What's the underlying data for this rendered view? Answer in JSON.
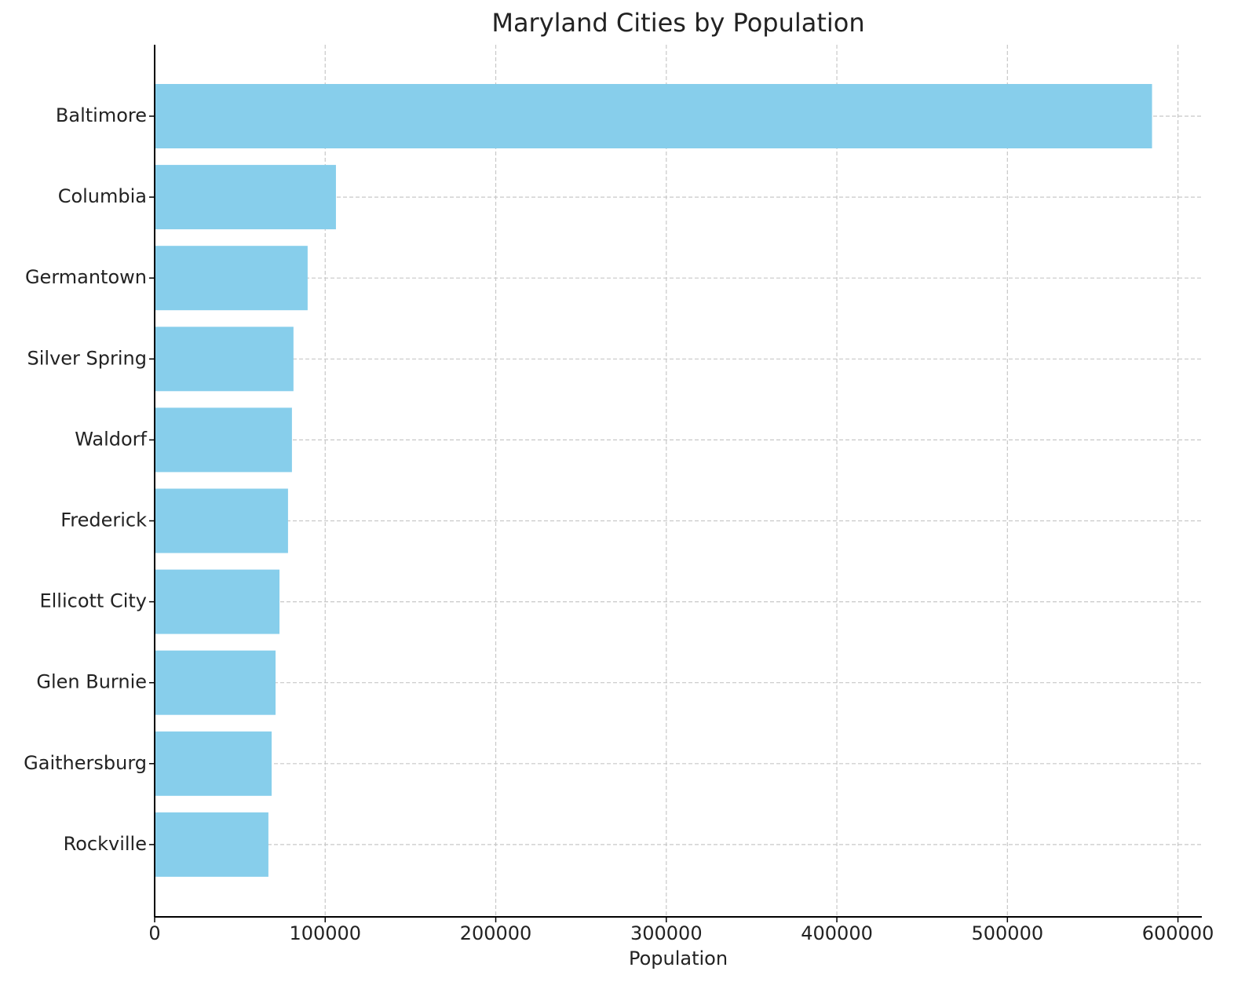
{
  "chart_data": {
    "type": "barh",
    "title": "Maryland Cities by Population",
    "xlabel": "Population",
    "categories": [
      "Baltimore",
      "Columbia",
      "Germantown",
      "Silver Spring",
      "Waldorf",
      "Frederick",
      "Ellicott City",
      "Glen Burnie",
      "Gaithersburg",
      "Rockville"
    ],
    "values": [
      584800,
      106300,
      89700,
      81400,
      80500,
      78200,
      73200,
      70900,
      68600,
      66700
    ],
    "color": "#87ceeb",
    "xlim": [
      0,
      614000
    ],
    "xticks": [
      0,
      100000,
      200000,
      300000,
      400000,
      500000,
      600000
    ],
    "grid": true
  }
}
